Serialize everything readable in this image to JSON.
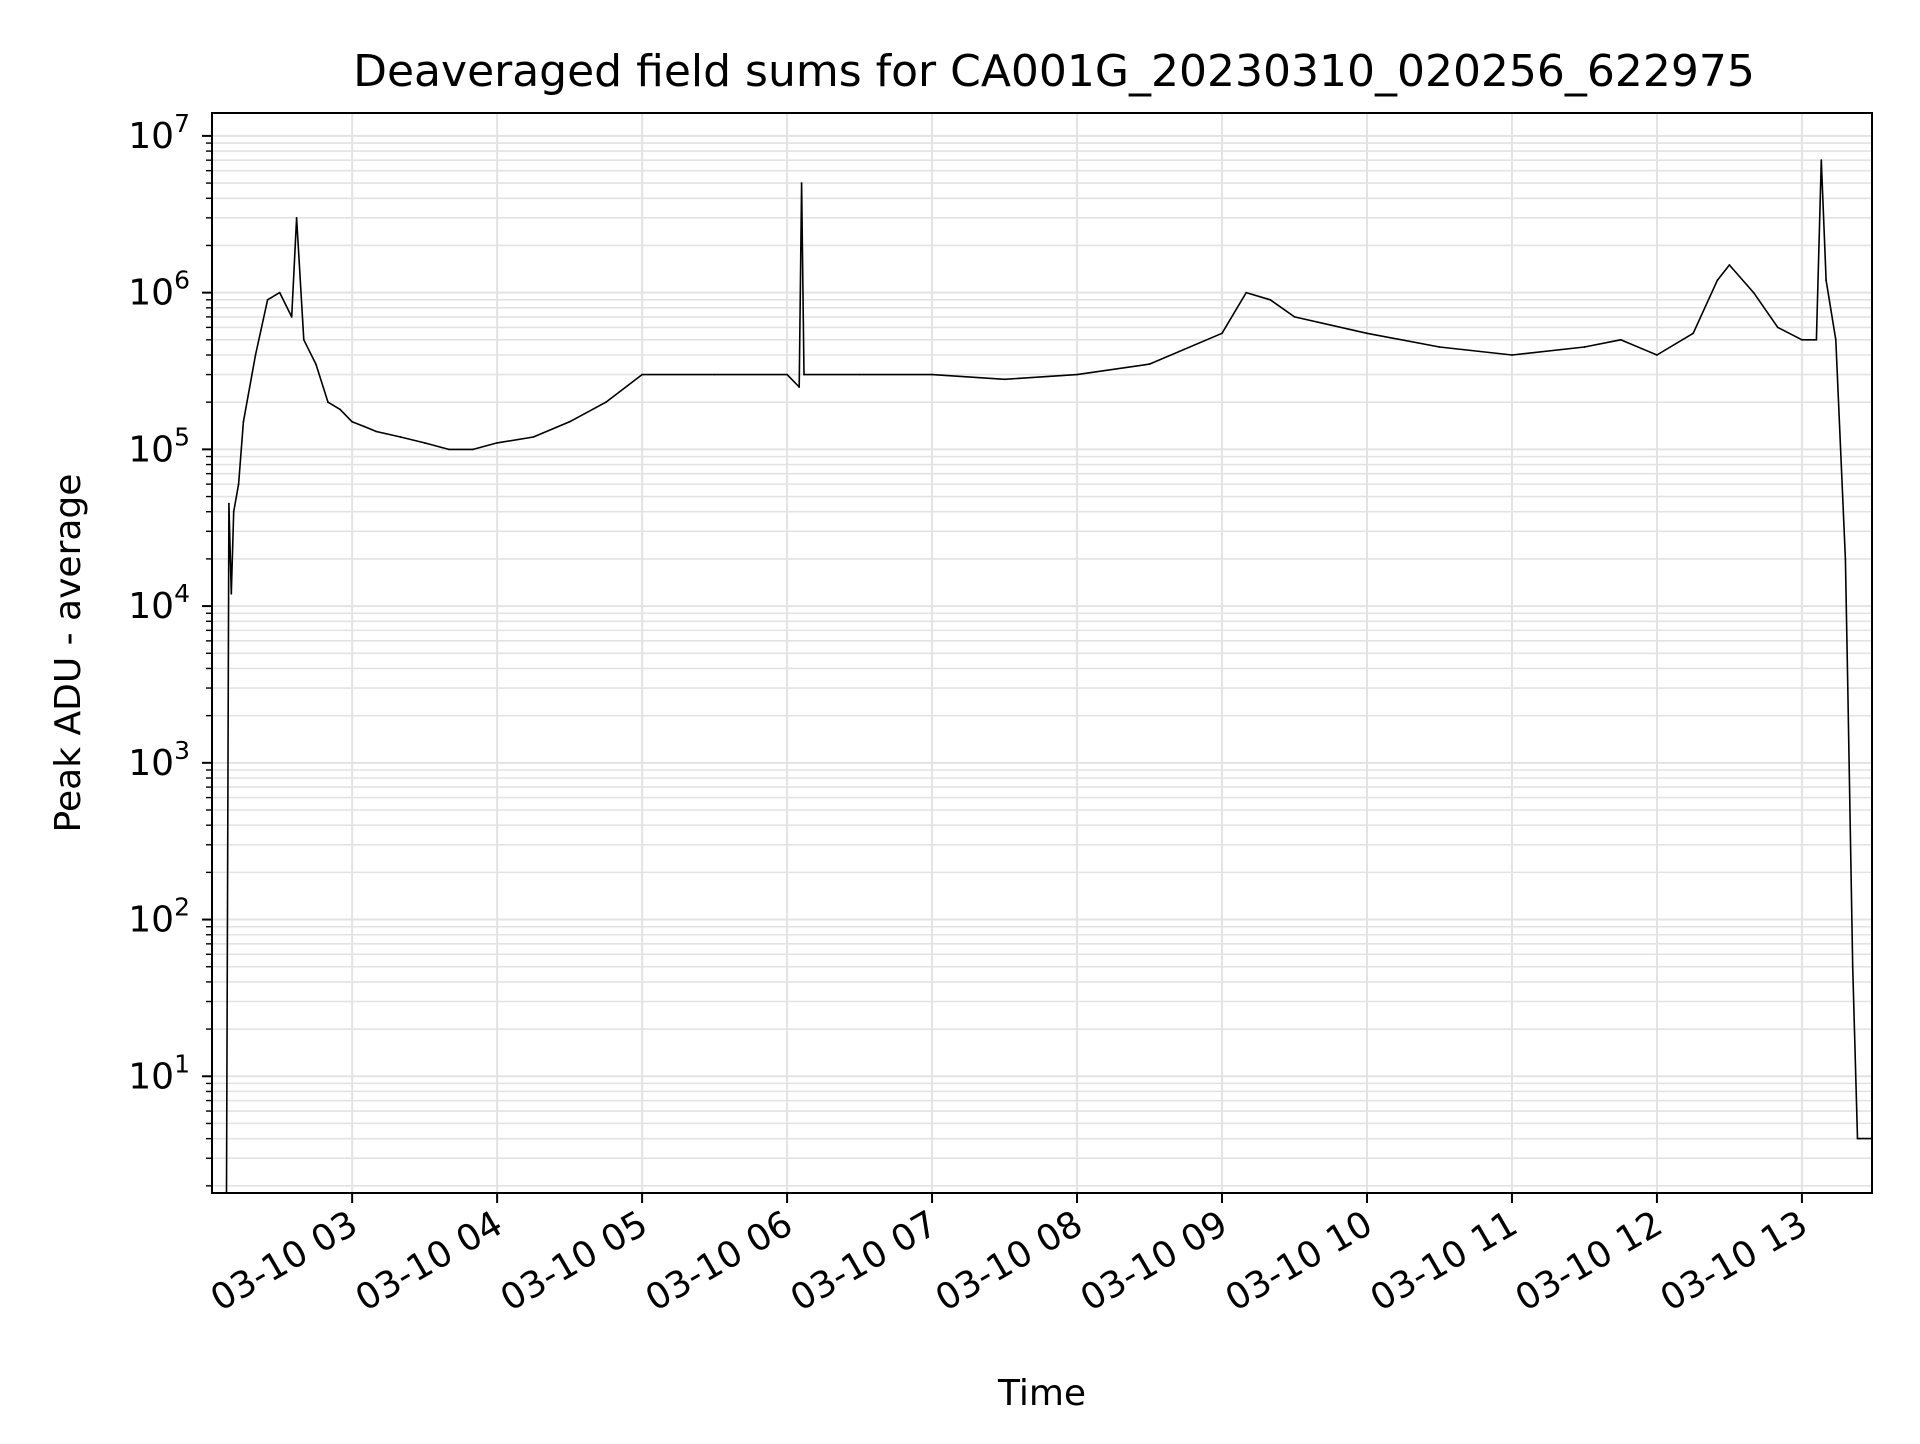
{
  "chart_data": {
    "type": "line",
    "title": "Deaveraged field sums for CA001G_20230310_020256_622975",
    "xlabel": "Time",
    "ylabel": "Peak ADU - average",
    "yscale": "log",
    "grid": true,
    "legend": "none",
    "line_color": "#000000",
    "xlim": [
      "2023-03-10 02:02",
      "2023-03-10 13:29"
    ],
    "ylim": [
      1.8,
      14000000
    ],
    "x_ticks": [
      {
        "value": "2023-03-10 03:00",
        "label": "03-10 03"
      },
      {
        "value": "2023-03-10 04:00",
        "label": "03-10 04"
      },
      {
        "value": "2023-03-10 05:00",
        "label": "03-10 05"
      },
      {
        "value": "2023-03-10 06:00",
        "label": "03-10 06"
      },
      {
        "value": "2023-03-10 07:00",
        "label": "03-10 07"
      },
      {
        "value": "2023-03-10 08:00",
        "label": "03-10 08"
      },
      {
        "value": "2023-03-10 09:00",
        "label": "03-10 09"
      },
      {
        "value": "2023-03-10 10:00",
        "label": "03-10 10"
      },
      {
        "value": "2023-03-10 11:00",
        "label": "03-10 11"
      },
      {
        "value": "2023-03-10 12:00",
        "label": "03-10 12"
      },
      {
        "value": "2023-03-10 13:00",
        "label": "03-10 13"
      }
    ],
    "y_ticks": [
      {
        "value": 10,
        "base": "10",
        "exp": "1"
      },
      {
        "value": 100,
        "base": "10",
        "exp": "2"
      },
      {
        "value": 1000,
        "base": "10",
        "exp": "3"
      },
      {
        "value": 10000,
        "base": "10",
        "exp": "4"
      },
      {
        "value": 100000,
        "base": "10",
        "exp": "5"
      },
      {
        "value": 1000000,
        "base": "10",
        "exp": "6"
      },
      {
        "value": 10000000,
        "base": "10",
        "exp": "7"
      }
    ],
    "series": [
      {
        "x": [
          "2023-03-10 02:08",
          "2023-03-10 02:09",
          "2023-03-10 02:10",
          "2023-03-10 02:11",
          "2023-03-10 02:13",
          "2023-03-10 02:15",
          "2023-03-10 02:20",
          "2023-03-10 02:25",
          "2023-03-10 02:30",
          "2023-03-10 02:35",
          "2023-03-10 02:37",
          "2023-03-10 02:40",
          "2023-03-10 02:45",
          "2023-03-10 02:50",
          "2023-03-10 02:55",
          "2023-03-10 03:00",
          "2023-03-10 03:05",
          "2023-03-10 03:10",
          "2023-03-10 03:20",
          "2023-03-10 03:30",
          "2023-03-10 03:40",
          "2023-03-10 03:50",
          "2023-03-10 04:00",
          "2023-03-10 04:15",
          "2023-03-10 04:30",
          "2023-03-10 04:45",
          "2023-03-10 05:00",
          "2023-03-10 05:30",
          "2023-03-10 06:00",
          "2023-03-10 06:05",
          "2023-03-10 06:06",
          "2023-03-10 06:07",
          "2023-03-10 06:30",
          "2023-03-10 07:00",
          "2023-03-10 07:30",
          "2023-03-10 08:00",
          "2023-03-10 08:30",
          "2023-03-10 09:00",
          "2023-03-10 09:10",
          "2023-03-10 09:20",
          "2023-03-10 09:30",
          "2023-03-10 10:00",
          "2023-03-10 10:30",
          "2023-03-10 11:00",
          "2023-03-10 11:30",
          "2023-03-10 11:45",
          "2023-03-10 12:00",
          "2023-03-10 12:15",
          "2023-03-10 12:25",
          "2023-03-10 12:30",
          "2023-03-10 12:40",
          "2023-03-10 12:50",
          "2023-03-10 13:00",
          "2023-03-10 13:06",
          "2023-03-10 13:08",
          "2023-03-10 13:10",
          "2023-03-10 13:14",
          "2023-03-10 13:18",
          "2023-03-10 13:19",
          "2023-03-10 13:21",
          "2023-03-10 13:23",
          "2023-03-10 13:24",
          "2023-03-10 13:29"
        ],
        "values": [
          1.8,
          45000,
          12000,
          40000,
          60000,
          150000,
          400000,
          900000,
          1000000,
          700000,
          3000000,
          500000,
          350000,
          200000,
          180000,
          150000,
          140000,
          130000,
          120000,
          110000,
          100000,
          100000,
          110000,
          120000,
          150000,
          200000,
          300000,
          300000,
          300000,
          250000,
          5000000,
          300000,
          300000,
          300000,
          280000,
          300000,
          350000,
          550000,
          1000000,
          900000,
          700000,
          550000,
          450000,
          400000,
          450000,
          500000,
          400000,
          550000,
          1200000,
          1500000,
          1000000,
          600000,
          500000,
          500000,
          7000000,
          1200000,
          500000,
          20000,
          3000,
          50,
          4,
          4,
          4
        ]
      }
    ]
  }
}
